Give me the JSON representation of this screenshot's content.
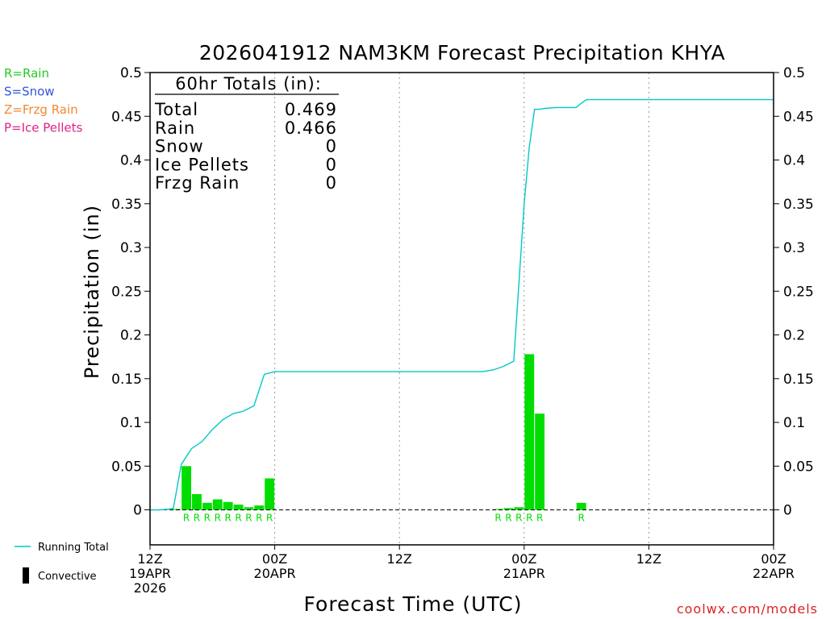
{
  "chart_data": {
    "type": "bar",
    "title": "2026041912 NAM3KM Forecast Precipitation KHYA",
    "xlabel": "Forecast Time (UTC)",
    "ylabel": "Precipitation (in)",
    "ylim": [
      -0.04,
      0.5
    ],
    "xlim_hours": [
      0,
      60
    ],
    "y_ticks": [
      "0",
      "0.05",
      "0.1",
      "0.15",
      "0.2",
      "0.25",
      "0.3",
      "0.35",
      "0.4",
      "0.45",
      "0.5"
    ],
    "x_ticks": [
      {
        "hour": 0,
        "lines": [
          "12Z",
          "19APR",
          "2026"
        ]
      },
      {
        "hour": 12,
        "lines": [
          "00Z",
          "20APR"
        ]
      },
      {
        "hour": 24,
        "lines": [
          "12Z"
        ]
      },
      {
        "hour": 36,
        "lines": [
          "00Z",
          "21APR"
        ]
      },
      {
        "hour": 48,
        "lines": [
          "12Z"
        ]
      },
      {
        "hour": 60,
        "lines": [
          "00Z",
          "22APR"
        ]
      }
    ],
    "grid": "vertical dotted at 00Z and 12Z",
    "legend_left": [
      {
        "text": "R=Rain",
        "color": "#22cc22"
      },
      {
        "text": "S=Snow",
        "color": "#3355dd"
      },
      {
        "text": "Z=Frzg Rain",
        "color": "#ee8833"
      },
      {
        "text": "P=Ice Pellets",
        "color": "#dd2288"
      }
    ],
    "legend_bottom": [
      {
        "text": "Running Total",
        "symbol": "line",
        "color": "#00c8c8"
      },
      {
        "text": "Convective",
        "symbol": "bar",
        "color": "#000000"
      }
    ],
    "totals": {
      "header": "60hr Totals (in):",
      "rows": [
        {
          "label": "Total",
          "value": "0.469"
        },
        {
          "label": "Rain",
          "value": "0.466"
        },
        {
          "label": "Snow",
          "value": "0"
        },
        {
          "label": "Ice Pellets",
          "value": "0"
        },
        {
          "label": "Frzg Rain",
          "value": "0"
        }
      ]
    },
    "series": [
      {
        "name": "Hourly Precipitation",
        "kind": "bar",
        "color": "#00dd00",
        "x": [
          3,
          4,
          5,
          6,
          7,
          8,
          9,
          10,
          11,
          12,
          34,
          35,
          36,
          37,
          38,
          42
        ],
        "values": [
          0.001,
          0.05,
          0.018,
          0.008,
          0.012,
          0.009,
          0.006,
          0.003,
          0.005,
          0.036,
          0.001,
          0.002,
          0.003,
          0.178,
          0.11,
          0.008
        ],
        "ptype": [
          "",
          "R",
          "R",
          "R",
          "R",
          "R",
          "R",
          "R",
          "R",
          "R",
          "R",
          "R",
          "R",
          "R",
          "R",
          "R"
        ]
      },
      {
        "name": "Running Total",
        "kind": "line",
        "color": "#00c8c8",
        "x": [
          0,
          1,
          2,
          2.25,
          3,
          4,
          5,
          6,
          7,
          8,
          9,
          10,
          11,
          12,
          13,
          14,
          16,
          20,
          24,
          28,
          32,
          33,
          34,
          34.5,
          35,
          35.5,
          36,
          36.5,
          37,
          37.5,
          38,
          39,
          40,
          41,
          41.5,
          42,
          43,
          48,
          54,
          60
        ],
        "values": [
          0,
          0,
          0.001,
          0.002,
          0.052,
          0.07,
          0.078,
          0.092,
          0.103,
          0.11,
          0.113,
          0.119,
          0.155,
          0.158,
          0.158,
          0.158,
          0.158,
          0.158,
          0.158,
          0.158,
          0.158,
          0.16,
          0.164,
          0.167,
          0.17,
          0.26,
          0.35,
          0.415,
          0.458,
          0.458,
          0.459,
          0.46,
          0.46,
          0.46,
          0.465,
          0.469,
          0.469,
          0.469,
          0.469,
          0.469
        ]
      }
    ]
  },
  "footer": {
    "credit": "coolwx.com/models"
  }
}
